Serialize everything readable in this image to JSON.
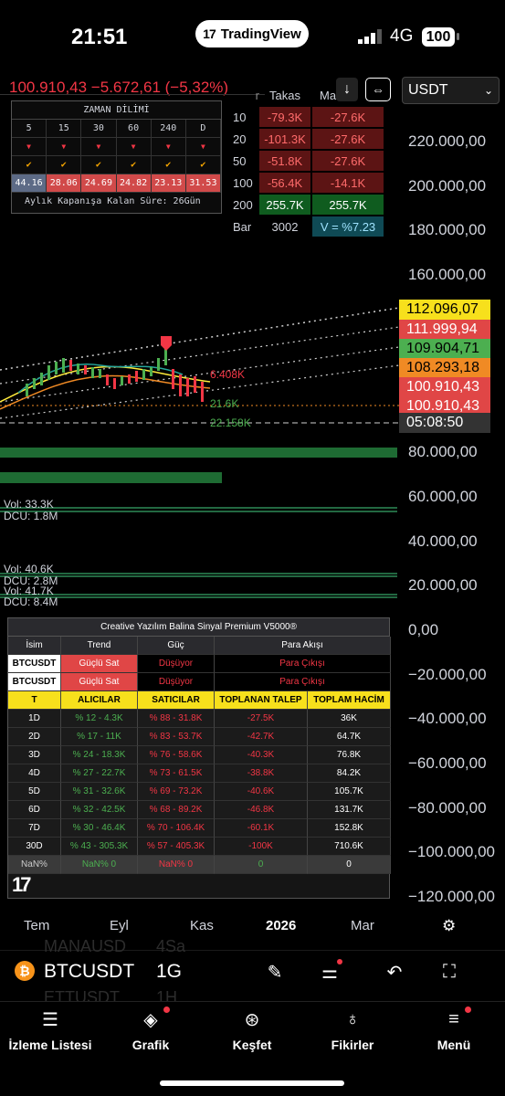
{
  "status": {
    "time": "21:51",
    "app_pill": "TradingView",
    "network": "4G",
    "battery": "100"
  },
  "header": {
    "price_line": "100.910,43 −5.672,61 (−5,32%)",
    "currency": "USDT"
  },
  "zaman": {
    "title": "ZAMAN DİLİMİ",
    "columns": [
      "5",
      "15",
      "30",
      "60",
      "240",
      "D"
    ],
    "values": [
      "44.16",
      "28.06",
      "24.69",
      "24.82",
      "23.13",
      "31.53"
    ],
    "footer": "Aylık Kapanışa Kalan Süre: 26Gün"
  },
  "takas": {
    "col1": "Takas",
    "col2": "Ma",
    "partial": "r",
    "rows": [
      {
        "label": "10",
        "a": "-79.3K",
        "b": "-27.6K"
      },
      {
        "label": "20",
        "a": "-101.3K",
        "b": "-27.6K"
      },
      {
        "label": "50",
        "a": "-51.8K",
        "b": "-27.6K"
      },
      {
        "label": "100",
        "a": "-56.4K",
        "b": "-14.1K"
      },
      {
        "label": "200",
        "a": "255.7K",
        "b": "255.7K"
      }
    ],
    "bar_label": "Bar",
    "bar_value": "3002",
    "v_value": "V = %7.23"
  },
  "price_axis": [
    "220.000,00",
    "200.000,00",
    "180.000,00",
    "160.000,00",
    "80.000,00",
    "60.000,00",
    "40.000,00",
    "20.000,00",
    "0,00",
    "−20.000,00",
    "−40.000,00",
    "−60.000,00",
    "−80.000,00",
    "−100.000,00",
    "−120.000,00"
  ],
  "price_tags": [
    "112.096,07",
    "111.999,94",
    "109.904,71",
    "108.293,18",
    "100.910,43",
    "100.910,43",
    "05:08:50"
  ],
  "price_tag_colors": [
    "#f7e01c",
    "#e04646",
    "#4caf50",
    "#f08a24",
    "#e04646",
    "#e04646",
    "#333333"
  ],
  "chart_labels": {
    "lbl1": "6.408K",
    "lbl2": "21.6K",
    "lbl3": "22.158K"
  },
  "volumes": [
    "Vol: 33.3K",
    "DCU: 1.8M",
    "Vol: 40.6K",
    "DCU: 2.8M",
    "Vol: 41.7K",
    "DCU: 8.4M"
  ],
  "balina": {
    "title": "Creative Yazılım Balina Sinyal Premium V5000®",
    "head": [
      "İsim",
      "Trend",
      "Güç",
      "Para Akışı"
    ],
    "signals": [
      {
        "name": "BTCUSDT",
        "trend": "Güçlü Sat",
        "guc": "Düşüyor",
        "akis": "Para Çıkışı"
      },
      {
        "name": "BTCUSDT",
        "trend": "Güçlü Sat",
        "guc": "Düşüyor",
        "akis": "Para Çıkışı"
      }
    ],
    "cols": [
      "T",
      "ALICILAR",
      "SATICILAR",
      "TOPLANAN TALEP",
      "TOPLAM HACİM"
    ],
    "rows": [
      [
        "1D",
        "% 12 - 4.3K",
        "% 88 - 31.8K",
        "-27.5K",
        "36K"
      ],
      [
        "2D",
        "% 17 - 11K",
        "% 83 - 53.7K",
        "-42.7K",
        "64.7K"
      ],
      [
        "3D",
        "% 24 - 18.3K",
        "% 76 - 58.6K",
        "-40.3K",
        "76.8K"
      ],
      [
        "4D",
        "% 27 - 22.7K",
        "% 73 - 61.5K",
        "-38.8K",
        "84.2K"
      ],
      [
        "5D",
        "% 31 - 32.6K",
        "% 69 - 73.2K",
        "-40.6K",
        "105.7K"
      ],
      [
        "6D",
        "% 32 - 42.5K",
        "% 68 - 89.2K",
        "-46.8K",
        "131.7K"
      ],
      [
        "7D",
        "% 30 - 46.4K",
        "% 70 - 106.4K",
        "-60.1K",
        "152.8K"
      ],
      [
        "30D",
        "% 43 - 305.3K",
        "% 57 - 405.3K",
        "-100K",
        "710.6K"
      ],
      [
        "NaN%",
        "NaN%  0",
        "NaN%  0",
        "0",
        "0"
      ]
    ]
  },
  "time_axis": [
    "Tem",
    "Eyl",
    "Kas",
    "2026",
    "Mar"
  ],
  "toolbar": {
    "symbol": "BTCUSDT",
    "interval": "1G",
    "ghost_top": "MANAUSD",
    "ghost_top_b": "4Sa",
    "ghost_bottom": "ETTUSDT",
    "ghost_bottom_b": "1H"
  },
  "nav": [
    "İzleme Listesi",
    "Grafik",
    "Keşfet",
    "Fikirler",
    "Menü"
  ]
}
